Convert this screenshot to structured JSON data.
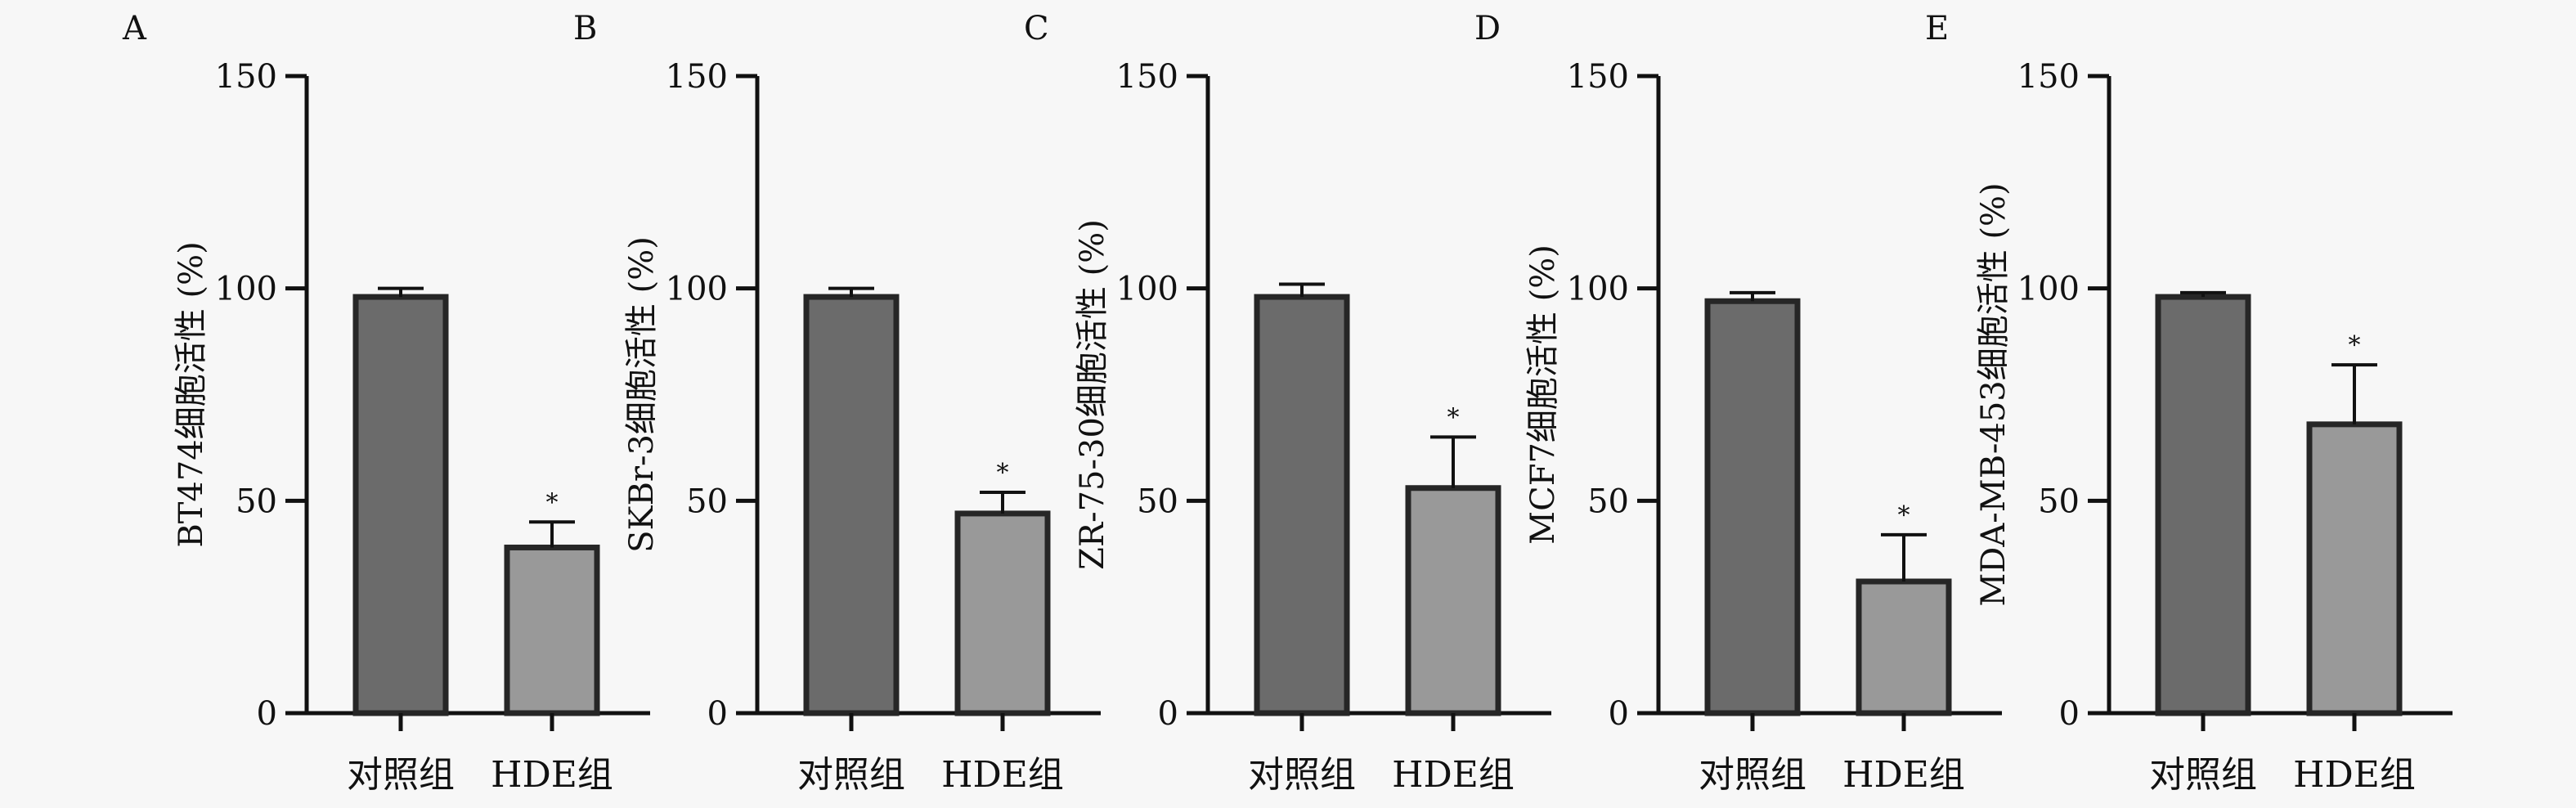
{
  "chart_data": [
    {
      "type": "bar",
      "panel": "A",
      "ylabel": "BT474细胞活性 (%)",
      "ylim": [
        0,
        150
      ],
      "yticks": [
        0,
        50,
        100,
        150
      ],
      "categories": [
        "对照组",
        "HDE组"
      ],
      "values": [
        98,
        39
      ],
      "error": [
        2,
        6
      ],
      "significance": [
        "",
        "*"
      ]
    },
    {
      "type": "bar",
      "panel": "B",
      "ylabel": "SKBr-3细胞活性 (%)",
      "ylim": [
        0,
        150
      ],
      "yticks": [
        0,
        50,
        100,
        150
      ],
      "categories": [
        "对照组",
        "HDE组"
      ],
      "values": [
        98,
        47
      ],
      "error": [
        2,
        5
      ],
      "significance": [
        "",
        "*"
      ]
    },
    {
      "type": "bar",
      "panel": "C",
      "ylabel": "ZR-75-30细胞活性 (%)",
      "ylim": [
        0,
        150
      ],
      "yticks": [
        0,
        50,
        100,
        150
      ],
      "categories": [
        "对照组",
        "HDE组"
      ],
      "values": [
        98,
        53
      ],
      "error": [
        3,
        12
      ],
      "significance": [
        "",
        "*"
      ]
    },
    {
      "type": "bar",
      "panel": "D",
      "ylabel": "MCF7细胞活性 (%)",
      "ylim": [
        0,
        150
      ],
      "yticks": [
        0,
        50,
        100,
        150
      ],
      "categories": [
        "对照组",
        "HDE组"
      ],
      "values": [
        97,
        31
      ],
      "error": [
        2,
        11
      ],
      "significance": [
        "",
        "*"
      ]
    },
    {
      "type": "bar",
      "panel": "E",
      "ylabel": "MDA-MB-453细胞活性 (%)",
      "ylim": [
        0,
        150
      ],
      "yticks": [
        0,
        50,
        100,
        150
      ],
      "categories": [
        "对照组",
        "HDE组"
      ],
      "values": [
        98,
        68
      ],
      "error": [
        1,
        14
      ],
      "significance": [
        "",
        "*"
      ]
    }
  ],
  "colors": {
    "bar_fills": [
      "#6b6b6b",
      "#999999"
    ],
    "bar_stroke": "#262626",
    "axis": "#111111",
    "background": "#f7f7f7"
  }
}
